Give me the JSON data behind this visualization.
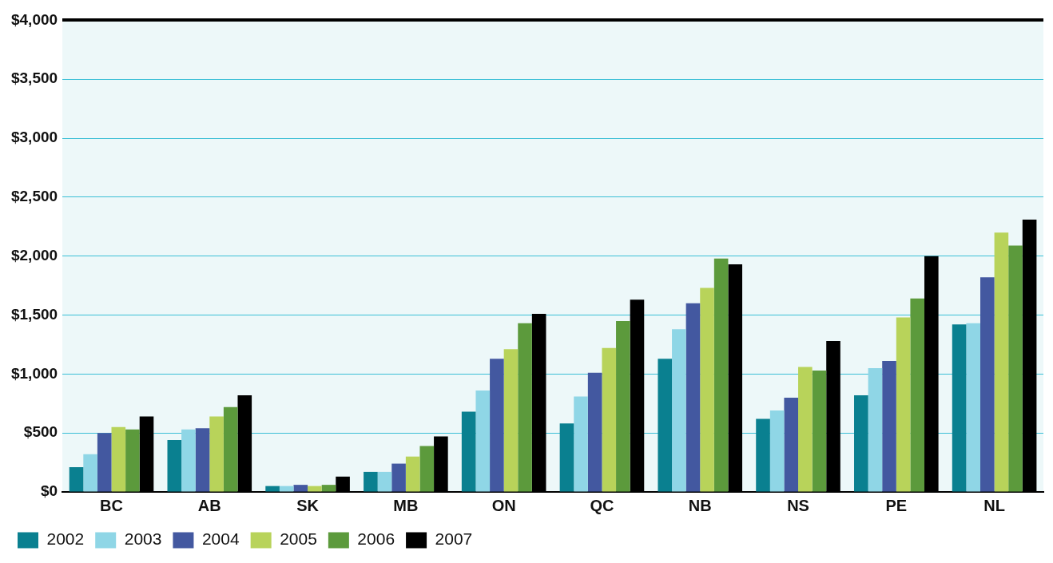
{
  "chart_data": {
    "type": "bar",
    "categories": [
      "BC",
      "AB",
      "SK",
      "MB",
      "ON",
      "QC",
      "NB",
      "NS",
      "PE",
      "NL"
    ],
    "series": [
      {
        "name": "2002",
        "color": "#0a8090",
        "values": [
          210,
          440,
          50,
          170,
          680,
          580,
          1130,
          620,
          820,
          1420
        ]
      },
      {
        "name": "2003",
        "color": "#8fd6e6",
        "values": [
          320,
          530,
          50,
          170,
          860,
          810,
          1380,
          690,
          1050,
          1430
        ]
      },
      {
        "name": "2004",
        "color": "#4358a0",
        "values": [
          500,
          540,
          60,
          240,
          1130,
          1010,
          1600,
          800,
          1110,
          1820
        ]
      },
      {
        "name": "2005",
        "color": "#b8d35a",
        "values": [
          550,
          640,
          50,
          300,
          1210,
          1220,
          1730,
          1060,
          1480,
          2200
        ]
      },
      {
        "name": "2006",
        "color": "#5c9a3c",
        "values": [
          530,
          720,
          60,
          390,
          1430,
          1450,
          1980,
          1030,
          1640,
          2090
        ]
      },
      {
        "name": "2007",
        "color": "#000000",
        "values": [
          640,
          820,
          130,
          470,
          1510,
          1630,
          1930,
          1280,
          2000,
          2310
        ]
      }
    ],
    "ylim": [
      0,
      4000
    ],
    "yticks": [
      {
        "value": 0,
        "label": "$0"
      },
      {
        "value": 500,
        "label": "$500"
      },
      {
        "value": 1000,
        "label": "$1,000"
      },
      {
        "value": 1500,
        "label": "$1,500"
      },
      {
        "value": 2000,
        "label": "$2,000"
      },
      {
        "value": 2500,
        "label": "$2,500"
      },
      {
        "value": 3000,
        "label": "$3,000"
      },
      {
        "value": 3500,
        "label": "$3,500"
      },
      {
        "value": 4000,
        "label": "$4,000"
      }
    ],
    "grid": "y",
    "legend": "bottom left"
  }
}
